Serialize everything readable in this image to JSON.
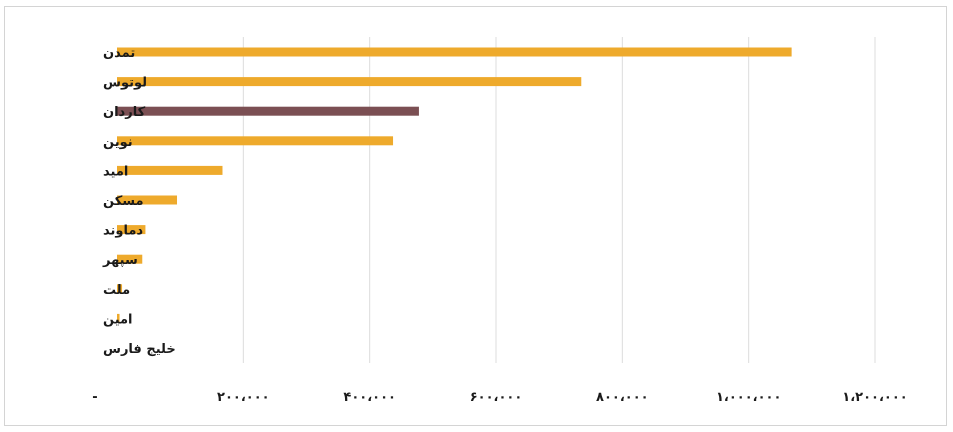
{
  "chart_data": {
    "type": "bar",
    "orientation": "horizontal",
    "title": "",
    "xlabel": "",
    "ylabel": "",
    "categories": [
      "تمدن",
      "لوتوس",
      "کاردان",
      "نوین",
      "امید",
      "مسکن",
      "دماوند",
      "سپهر",
      "ملت",
      "امین",
      "خلیج فارس"
    ],
    "values": [
      1068000,
      735000,
      478000,
      437000,
      167000,
      95000,
      45000,
      40000,
      8000,
      4000,
      0
    ],
    "bar_colors": [
      "#eeaa2c",
      "#eeaa2c",
      "#7b4f53",
      "#eeaa2c",
      "#eeaa2c",
      "#eeaa2c",
      "#eeaa2c",
      "#eeaa2c",
      "#eeaa2c",
      "#eeaa2c",
      "#eeaa2c"
    ],
    "xlim": [
      0,
      1200000
    ],
    "x_ticks": [
      0,
      200000,
      400000,
      600000,
      800000,
      1000000,
      1200000
    ],
    "x_tick_labels": [
      "-",
      "۲۰۰،۰۰۰",
      "۴۰۰،۰۰۰",
      "۶۰۰،۰۰۰",
      "۸۰۰،۰۰۰",
      "۱،۰۰۰،۰۰۰",
      "۱،۲۰۰،۰۰۰"
    ],
    "grid": "vertical",
    "legend": "none"
  }
}
